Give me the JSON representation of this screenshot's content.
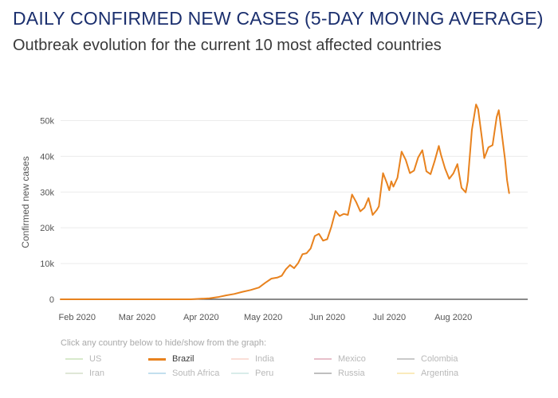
{
  "header": {
    "title": "DAILY CONFIRMED NEW CASES (5-DAY MOVING AVERAGE)",
    "subtitle": "Outbreak evolution for the current 10 most affected countries"
  },
  "legend": {
    "hint": "Click any country below to hide/show from the graph:",
    "items": [
      {
        "label": "US",
        "color": "#a8d08d",
        "active": false
      },
      {
        "label": "Brazil",
        "color": "#e8821e",
        "active": true
      },
      {
        "label": "India",
        "color": "#f4b8a8",
        "active": false
      },
      {
        "label": "Mexico",
        "color": "#c9728a",
        "active": false
      },
      {
        "label": "Colombia",
        "color": "#8a8a8a",
        "active": false
      },
      {
        "label": "Iran",
        "color": "#b9c9a6",
        "active": false
      },
      {
        "label": "South Africa",
        "color": "#7ab8d9",
        "active": false
      },
      {
        "label": "Peru",
        "color": "#aad4d0",
        "active": false
      },
      {
        "label": "Russia",
        "color": "#707070",
        "active": false
      },
      {
        "label": "Argentina",
        "color": "#f5d26a",
        "active": false
      }
    ]
  },
  "chart_data": {
    "type": "line",
    "ylabel": "Confirmed new cases",
    "xlabel": "",
    "ylim": [
      0,
      57000
    ],
    "grid": true,
    "xlim_day": [
      -8,
      218
    ],
    "x_unit": "days since 2020-02-01",
    "y_ticks": [
      {
        "value": 0,
        "label": "0"
      },
      {
        "value": 10000,
        "label": "10k"
      },
      {
        "value": 20000,
        "label": "20k"
      },
      {
        "value": 30000,
        "label": "30k"
      },
      {
        "value": 40000,
        "label": "40k"
      },
      {
        "value": 50000,
        "label": "50k"
      }
    ],
    "x_ticks": [
      {
        "day": 0,
        "label": "Feb 2020"
      },
      {
        "day": 29,
        "label": "Mar 2020"
      },
      {
        "day": 60,
        "label": "Apr 2020"
      },
      {
        "day": 90,
        "label": "May 2020"
      },
      {
        "day": 121,
        "label": "Jun 2020"
      },
      {
        "day": 151,
        "label": "Jul 2020"
      },
      {
        "day": 182,
        "label": "Aug 2020"
      }
    ],
    "series": [
      {
        "name": "Brazil",
        "color": "#e8821e",
        "points": [
          [
            -8,
            0
          ],
          [
            20,
            0
          ],
          [
            40,
            0
          ],
          [
            55,
            0
          ],
          [
            60,
            150
          ],
          [
            64,
            300
          ],
          [
            68,
            600
          ],
          [
            72,
            1100
          ],
          [
            76,
            1500
          ],
          [
            80,
            2100
          ],
          [
            84,
            2600
          ],
          [
            88,
            3300
          ],
          [
            91,
            4600
          ],
          [
            94,
            5800
          ],
          [
            97,
            6100
          ],
          [
            99,
            6600
          ],
          [
            101,
            8400
          ],
          [
            103,
            9600
          ],
          [
            105,
            8700
          ],
          [
            107,
            10200
          ],
          [
            109,
            12600
          ],
          [
            111,
            12900
          ],
          [
            113,
            14200
          ],
          [
            115,
            17700
          ],
          [
            117,
            18300
          ],
          [
            119,
            16400
          ],
          [
            121,
            16800
          ],
          [
            123,
            20300
          ],
          [
            125,
            24700
          ],
          [
            127,
            23300
          ],
          [
            129,
            23900
          ],
          [
            131,
            23600
          ],
          [
            133,
            29300
          ],
          [
            135,
            27200
          ],
          [
            137,
            24600
          ],
          [
            139,
            25600
          ],
          [
            141,
            28300
          ],
          [
            143,
            23600
          ],
          [
            145,
            25000
          ],
          [
            146,
            26000
          ],
          [
            148,
            35300
          ],
          [
            150,
            32300
          ],
          [
            151,
            30500
          ],
          [
            152,
            33000
          ],
          [
            153,
            31500
          ],
          [
            155,
            34000
          ],
          [
            157,
            41300
          ],
          [
            159,
            39000
          ],
          [
            161,
            35300
          ],
          [
            163,
            36000
          ],
          [
            165,
            39700
          ],
          [
            167,
            41700
          ],
          [
            169,
            35800
          ],
          [
            171,
            35000
          ],
          [
            173,
            38700
          ],
          [
            175,
            42900
          ],
          [
            176,
            40500
          ],
          [
            178,
            36600
          ],
          [
            180,
            33700
          ],
          [
            182,
            35200
          ],
          [
            184,
            37800
          ],
          [
            186,
            31200
          ],
          [
            188,
            29900
          ],
          [
            189,
            33000
          ],
          [
            191,
            47400
          ],
          [
            193,
            54500
          ],
          [
            194,
            53200
          ],
          [
            196,
            44300
          ],
          [
            197,
            39500
          ],
          [
            199,
            42500
          ],
          [
            201,
            43100
          ],
          [
            203,
            51000
          ],
          [
            204,
            52900
          ],
          [
            205,
            48500
          ],
          [
            207,
            39200
          ],
          [
            208,
            33300
          ],
          [
            209,
            29700
          ]
        ]
      }
    ]
  }
}
